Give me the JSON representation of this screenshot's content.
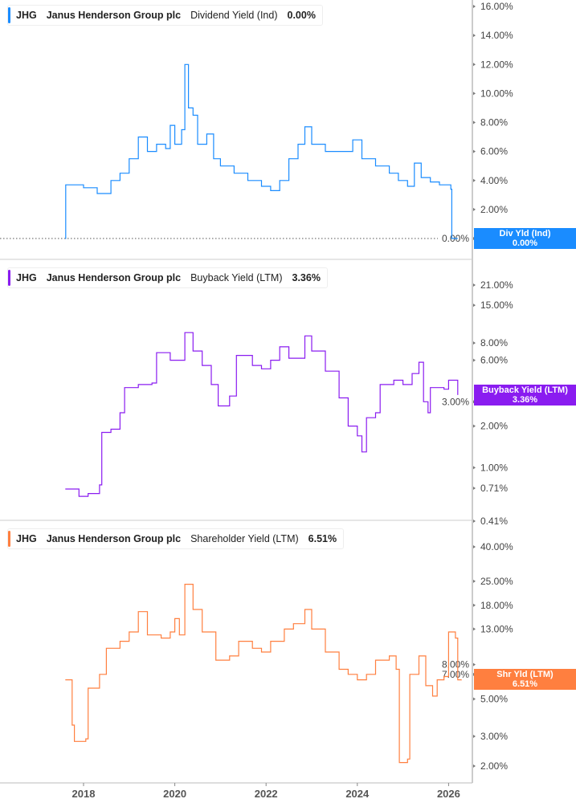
{
  "chart_data": [
    {
      "type": "line",
      "legend": {
        "ticker": "JHG",
        "company": "Janus Henderson Group plc",
        "metric": "Dividend Yield (Ind)",
        "value": "0.00%"
      },
      "color": "#1a8cff",
      "scale": "linear",
      "ylim": [
        0,
        16
      ],
      "yticks": [
        "0.00%",
        "2.00%",
        "4.00%",
        "6.00%",
        "8.00%",
        "10.00%",
        "12.00%",
        "14.00%",
        "16.00%"
      ],
      "badge": {
        "label": "Div Yld (Ind)",
        "value": "0.00%"
      },
      "x": [
        2017.6,
        2017.61,
        2018.0,
        2018.3,
        2018.6,
        2018.8,
        2019.0,
        2019.2,
        2019.4,
        2019.6,
        2019.8,
        2019.9,
        2020.0,
        2020.15,
        2020.22,
        2020.3,
        2020.4,
        2020.5,
        2020.7,
        2020.85,
        2021.0,
        2021.3,
        2021.6,
        2021.9,
        2022.1,
        2022.3,
        2022.5,
        2022.7,
        2022.85,
        2023.0,
        2023.3,
        2023.6,
        2023.9,
        2024.1,
        2024.4,
        2024.7,
        2024.9,
        2025.1,
        2025.25,
        2025.4,
        2025.6,
        2025.8,
        2026.05,
        2026.07,
        2026.2
      ],
      "y": [
        0,
        3.7,
        3.5,
        3.1,
        4.0,
        4.5,
        5.5,
        7.0,
        6.0,
        6.5,
        6.2,
        7.8,
        6.5,
        7.5,
        12.0,
        9.0,
        8.5,
        6.5,
        7.2,
        5.5,
        5.0,
        4.5,
        4.0,
        3.6,
        3.3,
        4.0,
        5.5,
        6.5,
        7.7,
        6.5,
        6.0,
        6.0,
        6.8,
        5.5,
        5.0,
        4.5,
        4.0,
        3.6,
        5.2,
        4.2,
        3.9,
        3.7,
        3.4,
        0,
        0
      ]
    },
    {
      "type": "line",
      "legend": {
        "ticker": "JHG",
        "company": "Janus Henderson Group plc",
        "metric": "Buyback Yield (LTM)",
        "value": "3.36%"
      },
      "color": "#8a1cf0",
      "scale": "log",
      "ylim": [
        0.41,
        21
      ],
      "yticks": [
        "0.41%",
        "0.71%",
        "1.00%",
        "2.00%",
        "3.00%",
        "6.00%",
        "8.00%",
        "15.00%",
        "21.00%"
      ],
      "badge": {
        "label": "Buyback Yield (LTM)",
        "value": "3.36%"
      },
      "x": [
        2017.6,
        2017.9,
        2018.1,
        2018.35,
        2018.4,
        2018.6,
        2018.8,
        2018.9,
        2019.2,
        2019.5,
        2019.6,
        2019.9,
        2020.1,
        2020.22,
        2020.4,
        2020.6,
        2020.8,
        2020.95,
        2021.2,
        2021.35,
        2021.7,
        2021.9,
        2022.1,
        2022.3,
        2022.5,
        2022.85,
        2023.0,
        2023.3,
        2023.6,
        2023.8,
        2024.0,
        2024.1,
        2024.2,
        2024.4,
        2024.5,
        2024.8,
        2025.0,
        2025.2,
        2025.35,
        2025.45,
        2025.55,
        2025.6,
        2025.9,
        2026.0,
        2026.2
      ],
      "y": [
        0.7,
        0.62,
        0.65,
        0.75,
        1.8,
        1.9,
        2.5,
        3.8,
        4.0,
        4.1,
        6.8,
        6.0,
        6.0,
        9.5,
        7.0,
        5.5,
        4.0,
        2.8,
        3.3,
        6.5,
        5.5,
        5.2,
        6.0,
        7.5,
        6.2,
        9.0,
        7.0,
        5.0,
        3.2,
        2.0,
        1.7,
        1.3,
        2.3,
        2.5,
        4.0,
        4.3,
        4.0,
        4.8,
        5.8,
        3.0,
        2.5,
        3.8,
        3.7,
        4.3,
        3.36
      ]
    },
    {
      "type": "line",
      "legend": {
        "ticker": "JHG",
        "company": "Janus Henderson Group plc",
        "metric": "Shareholder Yield (LTM)",
        "value": "6.51%"
      },
      "color": "#ff7f3f",
      "scale": "log",
      "ylim": [
        1.75,
        40
      ],
      "yticks": [
        "2.00%",
        "3.00%",
        "5.00%",
        "7.00%",
        "8.00%",
        "13.00%",
        "18.00%",
        "25.00%",
        "40.00%"
      ],
      "badge": {
        "label": "Shr Yld (LTM)",
        "value": "6.51%"
      },
      "x": [
        2017.6,
        2017.75,
        2017.8,
        2018.05,
        2018.1,
        2018.35,
        2018.5,
        2018.8,
        2019.0,
        2019.2,
        2019.4,
        2019.7,
        2019.9,
        2020.0,
        2020.1,
        2020.22,
        2020.4,
        2020.6,
        2020.9,
        2021.2,
        2021.4,
        2021.7,
        2021.9,
        2022.1,
        2022.4,
        2022.6,
        2022.85,
        2023.0,
        2023.3,
        2023.6,
        2023.8,
        2024.0,
        2024.2,
        2024.4,
        2024.7,
        2024.85,
        2024.92,
        2025.1,
        2025.15,
        2025.35,
        2025.5,
        2025.65,
        2025.75,
        2025.9,
        2026.0,
        2026.15,
        2026.2,
        2026.28
      ],
      "y": [
        6.5,
        3.5,
        2.8,
        2.9,
        5.8,
        7.0,
        10.0,
        11.0,
        12.5,
        16.5,
        12.0,
        11.5,
        12.5,
        15.0,
        12.0,
        24.0,
        17.0,
        12.5,
        8.5,
        9.0,
        11.0,
        10.0,
        9.5,
        11.0,
        13.0,
        14.0,
        17.0,
        13.0,
        9.5,
        7.5,
        7.0,
        6.5,
        7.0,
        8.5,
        9.0,
        7.5,
        2.1,
        2.2,
        7.0,
        9.0,
        6.0,
        5.2,
        6.5,
        6.8,
        12.5,
        11.5,
        6.5,
        6.51
      ]
    }
  ],
  "x_axis": {
    "ticks": [
      "2018",
      "2020",
      "2022",
      "2024",
      "2026"
    ]
  }
}
